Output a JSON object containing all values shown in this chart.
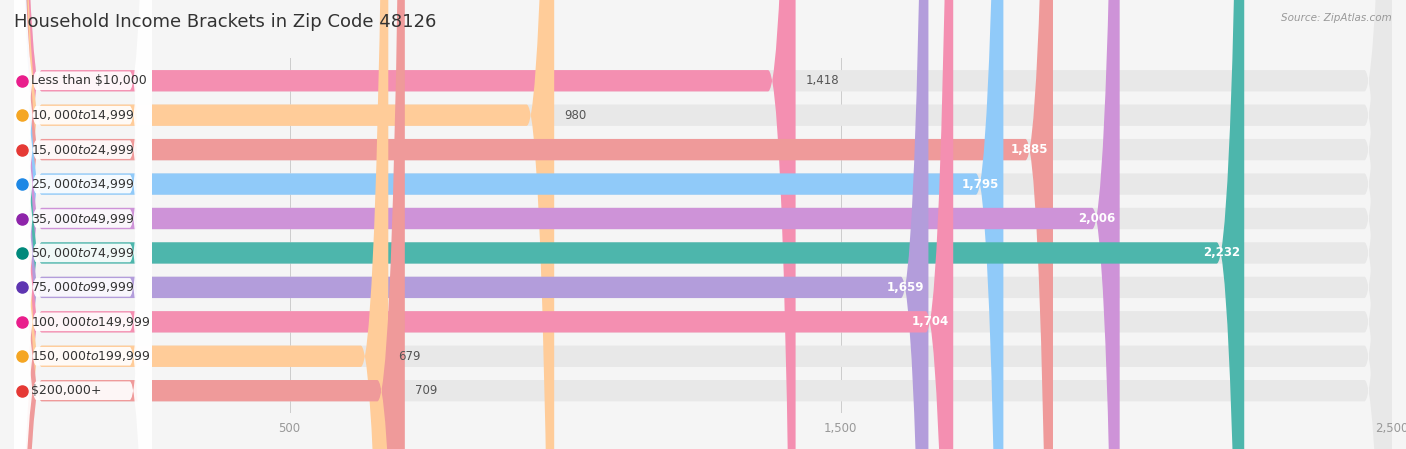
{
  "title": "Household Income Brackets in Zip Code 48126",
  "source": "Source: ZipAtlas.com",
  "categories": [
    "Less than $10,000",
    "$10,000 to $14,999",
    "$15,000 to $24,999",
    "$25,000 to $34,999",
    "$35,000 to $49,999",
    "$50,000 to $74,999",
    "$75,000 to $99,999",
    "$100,000 to $149,999",
    "$150,000 to $199,999",
    "$200,000+"
  ],
  "values": [
    1418,
    980,
    1885,
    1795,
    2006,
    2232,
    1659,
    1704,
    679,
    709
  ],
  "bar_colors": [
    "#f48fb1",
    "#ffcc99",
    "#ef9a9a",
    "#90caf9",
    "#ce93d8",
    "#4db6ac",
    "#b39ddb",
    "#f48fb1",
    "#ffcc99",
    "#ef9a9a"
  ],
  "dot_colors": [
    "#e91e8c",
    "#f5a623",
    "#e53935",
    "#1e88e5",
    "#8e24aa",
    "#00897b",
    "#5e35b1",
    "#e91e8c",
    "#f5a623",
    "#e53935"
  ],
  "xlim_max": 2500,
  "xticks": [
    500,
    1500,
    2500
  ],
  "background_color": "#f5f5f5",
  "bar_bg_color": "#e8e8e8",
  "title_fontsize": 13,
  "label_fontsize": 9,
  "value_fontsize": 8.5,
  "bar_height": 0.62,
  "value_label_inside_threshold": 1500,
  "bar_gap": 1.0
}
